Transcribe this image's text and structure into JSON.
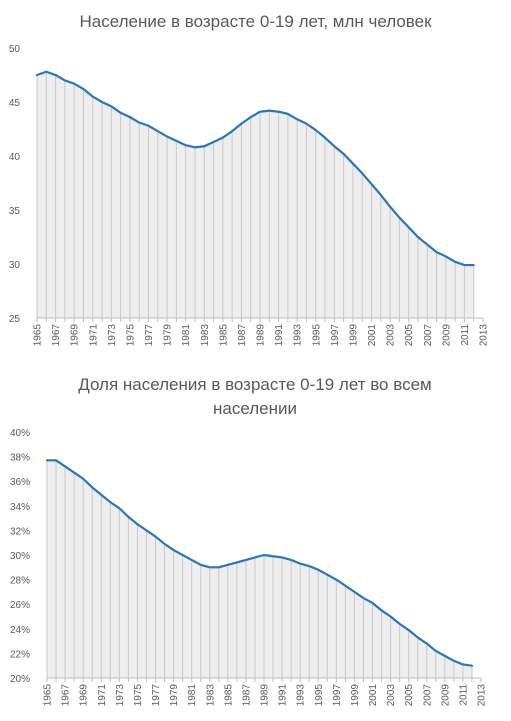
{
  "chart_data": [
    {
      "type": "area",
      "title": "Население в возрасте 0-19 лет, млн человек",
      "xlabel": "",
      "ylabel": "",
      "ylim": [
        25,
        50
      ],
      "yticks": [
        "25",
        "30",
        "35",
        "40",
        "45",
        "50"
      ],
      "xtick_labels": [
        "1965",
        "1967",
        "1969",
        "1971",
        "1973",
        "1975",
        "1977",
        "1979",
        "1981",
        "1983",
        "1985",
        "1987",
        "1989",
        "1991",
        "1993",
        "1995",
        "1997",
        "1999",
        "2001",
        "2003",
        "2005",
        "2007",
        "2009",
        "2011",
        "2013"
      ],
      "x": [
        1965,
        1966,
        1967,
        1968,
        1969,
        1970,
        1971,
        1972,
        1973,
        1974,
        1975,
        1976,
        1977,
        1978,
        1979,
        1980,
        1981,
        1982,
        1983,
        1984,
        1985,
        1986,
        1987,
        1988,
        1989,
        1990,
        1991,
        1992,
        1993,
        1994,
        1995,
        1996,
        1997,
        1998,
        1999,
        2000,
        2001,
        2002,
        2003,
        2004,
        2005,
        2006,
        2007,
        2008,
        2009,
        2010,
        2011,
        2012,
        2013
      ],
      "series": [
        {
          "values": [
            47.5,
            47.8,
            47.5,
            47.0,
            46.7,
            46.2,
            45.5,
            45.0,
            44.6,
            44.0,
            43.6,
            43.1,
            42.8,
            42.3,
            41.8,
            41.4,
            41.0,
            40.8,
            40.9,
            41.3,
            41.7,
            42.3,
            43.0,
            43.6,
            44.1,
            44.2,
            44.1,
            43.9,
            43.4,
            43.0,
            42.4,
            41.7,
            40.9,
            40.2,
            39.3,
            38.4,
            37.4,
            36.4,
            35.3,
            34.3,
            33.4,
            32.5,
            31.8,
            31.1,
            30.7,
            30.2,
            29.9,
            29.9,
            null
          ]
        }
      ],
      "colors": {
        "line": "#2e75b6",
        "fill": "#eeeeee",
        "drop_lines": "#c9c9c9",
        "axis": "#bfbfbf",
        "text": "#595959"
      }
    },
    {
      "type": "area",
      "title": "Доля населения в возрасте 0-19 лет во всем населении",
      "xlabel": "",
      "ylabel": "",
      "ylim": [
        20,
        40
      ],
      "yticks": [
        "20%",
        "22%",
        "24%",
        "26%",
        "28%",
        "30%",
        "32%",
        "34%",
        "36%",
        "38%",
        "40%"
      ],
      "xtick_labels": [
        "1965",
        "1967",
        "1969",
        "1971",
        "1973",
        "1975",
        "1977",
        "1979",
        "1981",
        "1983",
        "1985",
        "1987",
        "1989",
        "1991",
        "1993",
        "1995",
        "1997",
        "1999",
        "2001",
        "2003",
        "2005",
        "2007",
        "2009",
        "2011",
        "2013"
      ],
      "x": [
        1965,
        1966,
        1967,
        1968,
        1969,
        1970,
        1971,
        1972,
        1973,
        1974,
        1975,
        1976,
        1977,
        1978,
        1979,
        1980,
        1981,
        1982,
        1983,
        1984,
        1985,
        1986,
        1987,
        1988,
        1989,
        1990,
        1991,
        1992,
        1993,
        1994,
        1995,
        1996,
        1997,
        1998,
        1999,
        2000,
        2001,
        2002,
        2003,
        2004,
        2005,
        2006,
        2007,
        2008,
        2009,
        2010,
        2011,
        2012,
        2013
      ],
      "series": [
        {
          "values": [
            37.7,
            37.7,
            37.2,
            36.7,
            36.2,
            35.5,
            34.9,
            34.3,
            33.8,
            33.1,
            32.5,
            32.0,
            31.5,
            30.9,
            30.4,
            30.0,
            29.6,
            29.2,
            29.0,
            29.0,
            29.2,
            29.4,
            29.6,
            29.8,
            30.0,
            29.9,
            29.8,
            29.6,
            29.3,
            29.1,
            28.8,
            28.4,
            28.0,
            27.5,
            27.0,
            26.5,
            26.1,
            25.5,
            25.0,
            24.4,
            23.9,
            23.3,
            22.8,
            22.2,
            21.8,
            21.4,
            21.1,
            21.0,
            null
          ]
        }
      ],
      "colors": {
        "line": "#2e75b6",
        "fill": "#eeeeee",
        "drop_lines": "#c9c9c9",
        "axis": "#bfbfbf",
        "text": "#595959"
      }
    }
  ]
}
